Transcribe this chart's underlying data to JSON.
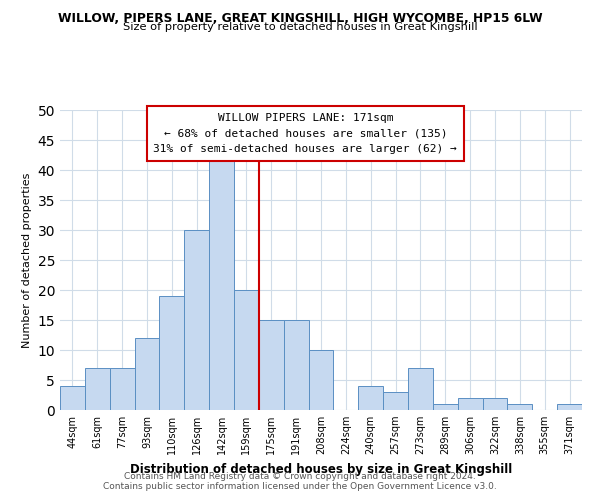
{
  "title": "WILLOW, PIPERS LANE, GREAT KINGSHILL, HIGH WYCOMBE, HP15 6LW",
  "subtitle": "Size of property relative to detached houses in Great Kingshill",
  "xlabel": "Distribution of detached houses by size in Great Kingshill",
  "ylabel": "Number of detached properties",
  "bar_labels": [
    "44sqm",
    "61sqm",
    "77sqm",
    "93sqm",
    "110sqm",
    "126sqm",
    "142sqm",
    "159sqm",
    "175sqm",
    "191sqm",
    "208sqm",
    "224sqm",
    "240sqm",
    "257sqm",
    "273sqm",
    "289sqm",
    "306sqm",
    "322sqm",
    "338sqm",
    "355sqm",
    "371sqm"
  ],
  "bar_values": [
    4,
    7,
    7,
    12,
    19,
    30,
    42,
    20,
    15,
    15,
    10,
    0,
    4,
    3,
    7,
    1,
    2,
    2,
    1,
    0,
    1
  ],
  "bar_color": "#c6d9f0",
  "bar_edge_color": "#5a8fc3",
  "vline_color": "#cc0000",
  "annotation_box_title": "WILLOW PIPERS LANE: 171sqm",
  "annotation_line1": "← 68% of detached houses are smaller (135)",
  "annotation_line2": "31% of semi-detached houses are larger (62) →",
  "ylim": [
    0,
    50
  ],
  "yticks": [
    0,
    5,
    10,
    15,
    20,
    25,
    30,
    35,
    40,
    45,
    50
  ],
  "footer1": "Contains HM Land Registry data © Crown copyright and database right 2024.",
  "footer2": "Contains public sector information licensed under the Open Government Licence v3.0.",
  "background_color": "#ffffff",
  "grid_color": "#d0dce8",
  "vline_index": 7.5
}
